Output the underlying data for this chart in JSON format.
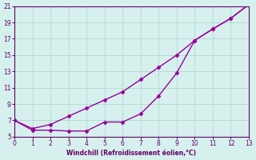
{
  "line1_x": [
    0,
    1,
    2,
    3,
    4,
    5,
    6,
    7,
    8,
    9,
    10,
    11,
    12,
    13
  ],
  "line1_y": [
    7.0,
    6.0,
    6.5,
    7.5,
    8.5,
    9.5,
    10.5,
    12.0,
    13.5,
    15.0,
    16.8,
    18.2,
    19.5,
    21.2
  ],
  "line2_x": [
    0,
    1,
    2,
    3,
    4,
    5,
    6,
    7,
    8,
    9,
    10,
    11,
    12,
    13
  ],
  "line2_y": [
    7.0,
    5.8,
    5.8,
    5.7,
    5.7,
    6.8,
    6.8,
    7.8,
    10.0,
    12.8,
    16.8,
    18.2,
    19.5,
    21.2
  ],
  "line_color": "#990099",
  "marker": "D",
  "markersize": 2.5,
  "linewidth": 1.0,
  "xlim": [
    0,
    13
  ],
  "ylim": [
    5,
    21
  ],
  "yticks": [
    5,
    7,
    9,
    11,
    13,
    15,
    17,
    19,
    21
  ],
  "xticks": [
    0,
    1,
    2,
    3,
    4,
    5,
    6,
    7,
    8,
    9,
    10,
    11,
    12,
    13
  ],
  "xlabel": "Windchill (Refroidissement éolien,°C)",
  "background_color": "#d6f0ee",
  "grid_color": "#b0d8d0",
  "label_color": "#660066",
  "tick_color": "#660066",
  "spine_color": "#660066"
}
